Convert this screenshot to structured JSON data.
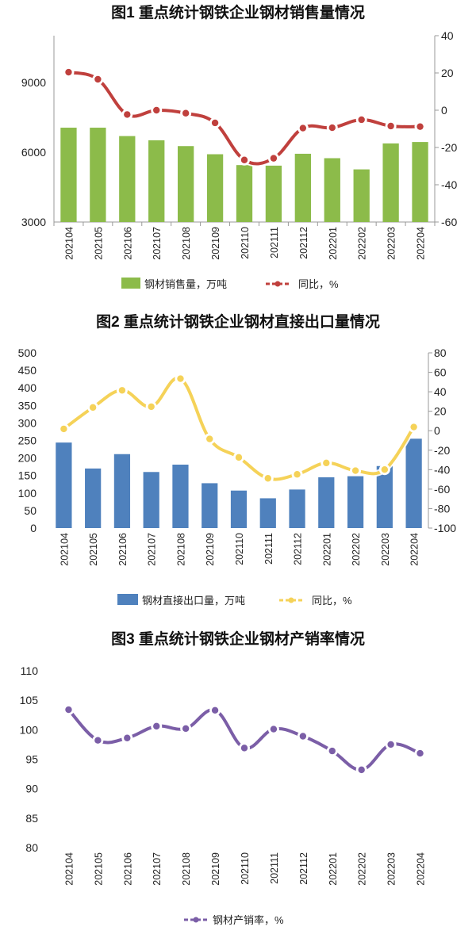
{
  "chart_data": [
    {
      "type": "bar+line",
      "title": "图1  重点统计钢铁企业钢材销售量情况",
      "categories": [
        "202104",
        "202105",
        "202106",
        "202107",
        "202108",
        "202109",
        "202110",
        "202111",
        "202112",
        "202201",
        "202202",
        "202203",
        "202204"
      ],
      "series": [
        {
          "name": "钢材销售量，万吨",
          "type": "bar",
          "axis": "left",
          "color": "#8cbb4a",
          "values": [
            7050,
            7050,
            6690,
            6510,
            6260,
            5910,
            5445,
            5420,
            5930,
            5740,
            5260,
            6375,
            6435
          ]
        },
        {
          "name": "同比，%",
          "type": "line",
          "axis": "right",
          "color": "#c0403d",
          "values": [
            20.4,
            16.6,
            -2.3,
            0.0,
            -1.6,
            -6.8,
            -26.7,
            -25.8,
            -9.6,
            -9.4,
            -5.1,
            -8.5,
            -8.8
          ]
        }
      ],
      "left_axis": {
        "range": [
          3000,
          11000
        ],
        "ticks": [
          3000,
          6000,
          9000
        ]
      },
      "right_axis": {
        "range": [
          -60,
          40
        ],
        "ticks": [
          -60,
          -40,
          -20,
          0,
          20,
          40
        ]
      },
      "legend": "bottom"
    },
    {
      "type": "bar+line",
      "title": "图2  重点统计钢铁企业钢材直接出口量情况",
      "categories": [
        "202104",
        "202105",
        "202106",
        "202107",
        "202108",
        "202109",
        "202110",
        "202111",
        "202112",
        "202201",
        "202202",
        "202203",
        "202204"
      ],
      "series": [
        {
          "name": "钢材直接出口量，万吨",
          "type": "bar",
          "axis": "left",
          "color": "#4f81bd",
          "values": [
            244,
            170,
            211,
            160,
            181,
            128,
            107,
            85,
            110,
            145,
            148,
            177,
            255
          ]
        },
        {
          "name": "同比，%",
          "type": "line",
          "axis": "right",
          "color": "#f5d258",
          "values": [
            1.9,
            23.9,
            41.5,
            24.7,
            53.5,
            -8.4,
            -27.4,
            -48.9,
            -44.8,
            -33.1,
            -41.0,
            -39.9,
            3.8
          ]
        }
      ],
      "left_axis": {
        "range": [
          0,
          500
        ],
        "ticks": [
          0,
          50,
          100,
          150,
          200,
          250,
          300,
          350,
          400,
          450,
          500
        ]
      },
      "right_axis": {
        "range": [
          -100,
          80
        ],
        "ticks": [
          -100,
          -80,
          -60,
          -40,
          -20,
          0,
          20,
          40,
          60,
          80
        ]
      },
      "legend": "bottom"
    },
    {
      "type": "line",
      "title": "图3  重点统计钢铁企业钢材产销率情况",
      "categories": [
        "202104",
        "202105",
        "202106",
        "202107",
        "202108",
        "202109",
        "202110",
        "202111",
        "202112",
        "202201",
        "202202",
        "202203",
        "202204"
      ],
      "series": [
        {
          "name": "钢材产销率，%",
          "type": "line",
          "axis": "left",
          "color": "#7b5ea7",
          "values": [
            103.4,
            98.2,
            98.6,
            100.6,
            100.2,
            103.3,
            96.9,
            100.1,
            98.9,
            96.4,
            93.2,
            97.5,
            96.0
          ]
        }
      ],
      "left_axis": {
        "range": [
          80,
          110
        ],
        "ticks": [
          80,
          85,
          90,
          95,
          100,
          105,
          110
        ]
      },
      "legend": "bottom"
    }
  ]
}
